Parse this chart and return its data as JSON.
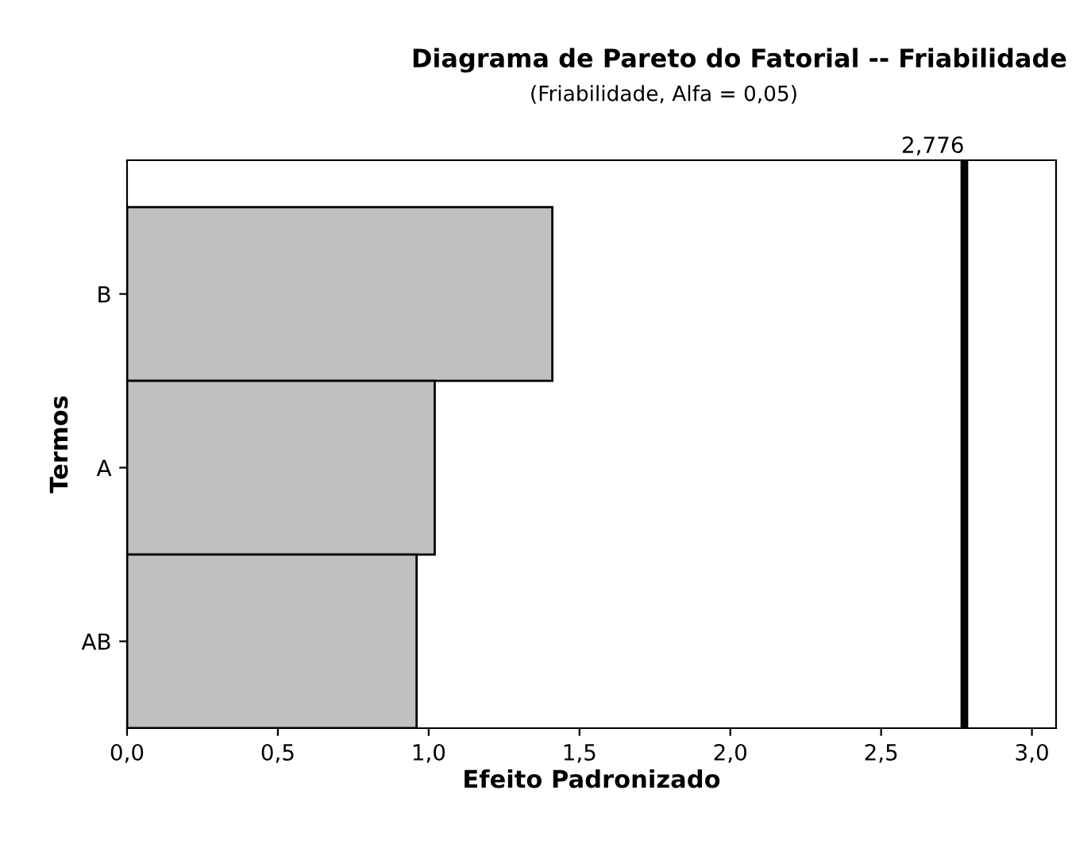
{
  "chart_data": {
    "type": "bar",
    "orientation": "horizontal",
    "title": "Diagrama de Pareto do Fatorial -- Friabilidade",
    "subtitle": "(Friabilidade, Alfa = 0,05)",
    "xlabel": "Efeito Padronizado",
    "ylabel": "Termos",
    "categories": [
      "B",
      "A",
      "AB"
    ],
    "values": [
      1.41,
      1.02,
      0.96
    ],
    "color": "#c0c0c0",
    "xlim": [
      0,
      3.08
    ],
    "xticks": [
      {
        "value": 0,
        "label": "0,0"
      },
      {
        "value": 0.5,
        "label": "0,5"
      },
      {
        "value": 1.0,
        "label": "1,0"
      },
      {
        "value": 1.5,
        "label": "1,5"
      },
      {
        "value": 2.0,
        "label": "2,0"
      },
      {
        "value": 2.5,
        "label": "2,5"
      },
      {
        "value": 3.0,
        "label": "3,0"
      }
    ],
    "ref_lines": [
      {
        "axis": "x",
        "value": 2.776,
        "label": "2,776",
        "color": "#000000"
      }
    ],
    "grid": false,
    "legend": false
  }
}
